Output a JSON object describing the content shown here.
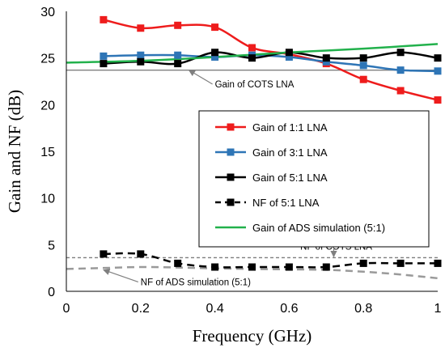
{
  "chart_data": {
    "type": "line",
    "title": "",
    "xlabel": "Frequency (GHz)",
    "ylabel": "Gain and NF (dB)",
    "xlim": [
      0,
      1
    ],
    "ylim": [
      0,
      30
    ],
    "xticks": [
      0,
      0.2,
      0.4,
      0.6,
      0.8,
      1
    ],
    "xtick_labels": [
      "0",
      "0.2",
      "0.4",
      "0.6",
      "0.8",
      "1"
    ],
    "yticks": [
      0,
      5,
      10,
      15,
      20,
      25,
      30
    ],
    "ytick_labels": [
      "0",
      "5",
      "10",
      "15",
      "20",
      "25",
      "30"
    ],
    "grid": false,
    "legend_position": "center-right",
    "series": [
      {
        "name": "Gain of 1:1 LNA",
        "color": "#ee1c1c",
        "style": "solid",
        "marker": "square",
        "x": [
          0.1,
          0.2,
          0.3,
          0.4,
          0.5,
          0.6,
          0.7,
          0.8,
          0.9,
          1.0
        ],
        "y": [
          29.1,
          28.2,
          28.5,
          28.3,
          26.1,
          25.4,
          24.4,
          22.7,
          21.5,
          20.5
        ]
      },
      {
        "name": "Gain of 3:1 LNA",
        "color": "#2e75b6",
        "style": "solid",
        "marker": "square",
        "x": [
          0.1,
          0.2,
          0.3,
          0.4,
          0.5,
          0.6,
          0.7,
          0.8,
          0.9,
          1.0
        ],
        "y": [
          25.2,
          25.3,
          25.3,
          25.1,
          25.3,
          25.1,
          24.6,
          24.2,
          23.7,
          23.6
        ]
      },
      {
        "name": "Gain of 5:1 LNA",
        "color": "#000000",
        "style": "solid",
        "marker": "square",
        "x": [
          0.1,
          0.2,
          0.3,
          0.4,
          0.5,
          0.6,
          0.7,
          0.8,
          0.9,
          1.0
        ],
        "y": [
          24.4,
          24.6,
          24.4,
          25.6,
          25.0,
          25.6,
          25.0,
          25.0,
          25.6,
          25.0
        ]
      },
      {
        "name": "NF of 5:1 LNA",
        "color": "#000000",
        "style": "dashed",
        "marker": "square",
        "x": [
          0.1,
          0.2,
          0.3,
          0.4,
          0.5,
          0.6,
          0.7,
          0.8,
          0.9,
          1.0
        ],
        "y": [
          4.0,
          4.0,
          3.0,
          2.6,
          2.6,
          2.6,
          2.6,
          3.0,
          3.0,
          3.0
        ]
      },
      {
        "name": "Gain of ADS simulation (5:1)",
        "color": "#22b14c",
        "style": "solid",
        "marker": "none",
        "x": [
          0,
          0.2,
          0.4,
          0.6,
          0.8,
          1.0
        ],
        "y": [
          24.5,
          24.7,
          25.1,
          25.6,
          26.0,
          26.5
        ]
      }
    ],
    "unlabeled_series": [
      {
        "color": "#9a9a9a",
        "style": "dashed",
        "x": [
          0,
          0.1,
          0.2,
          0.3,
          0.4,
          0.5,
          0.6,
          0.7,
          0.8,
          0.9,
          1.0
        ],
        "y": [
          2.4,
          2.5,
          2.6,
          2.55,
          2.45,
          2.4,
          2.35,
          2.3,
          2.1,
          1.8,
          1.4
        ]
      }
    ],
    "reference_lines": [
      {
        "y": 23.7,
        "color": "#7f7f7f",
        "style": "solid"
      },
      {
        "y": 3.6,
        "color": "#7f7f7f",
        "style": "dashed"
      }
    ],
    "annotations": [
      {
        "text": "Gain of COTS LNA",
        "x": 0.4,
        "y": 22.2,
        "arrow_to": [
          0.33,
          23.7
        ]
      },
      {
        "text": "NF of COTS LNA",
        "x": 0.63,
        "y": 4.8,
        "arrow_to": [
          0.72,
          3.7
        ]
      },
      {
        "text": "NF of ADS simulation (5:1)",
        "x": 0.2,
        "y": 1.0,
        "arrow_to": [
          0.1,
          2.3
        ]
      }
    ]
  }
}
